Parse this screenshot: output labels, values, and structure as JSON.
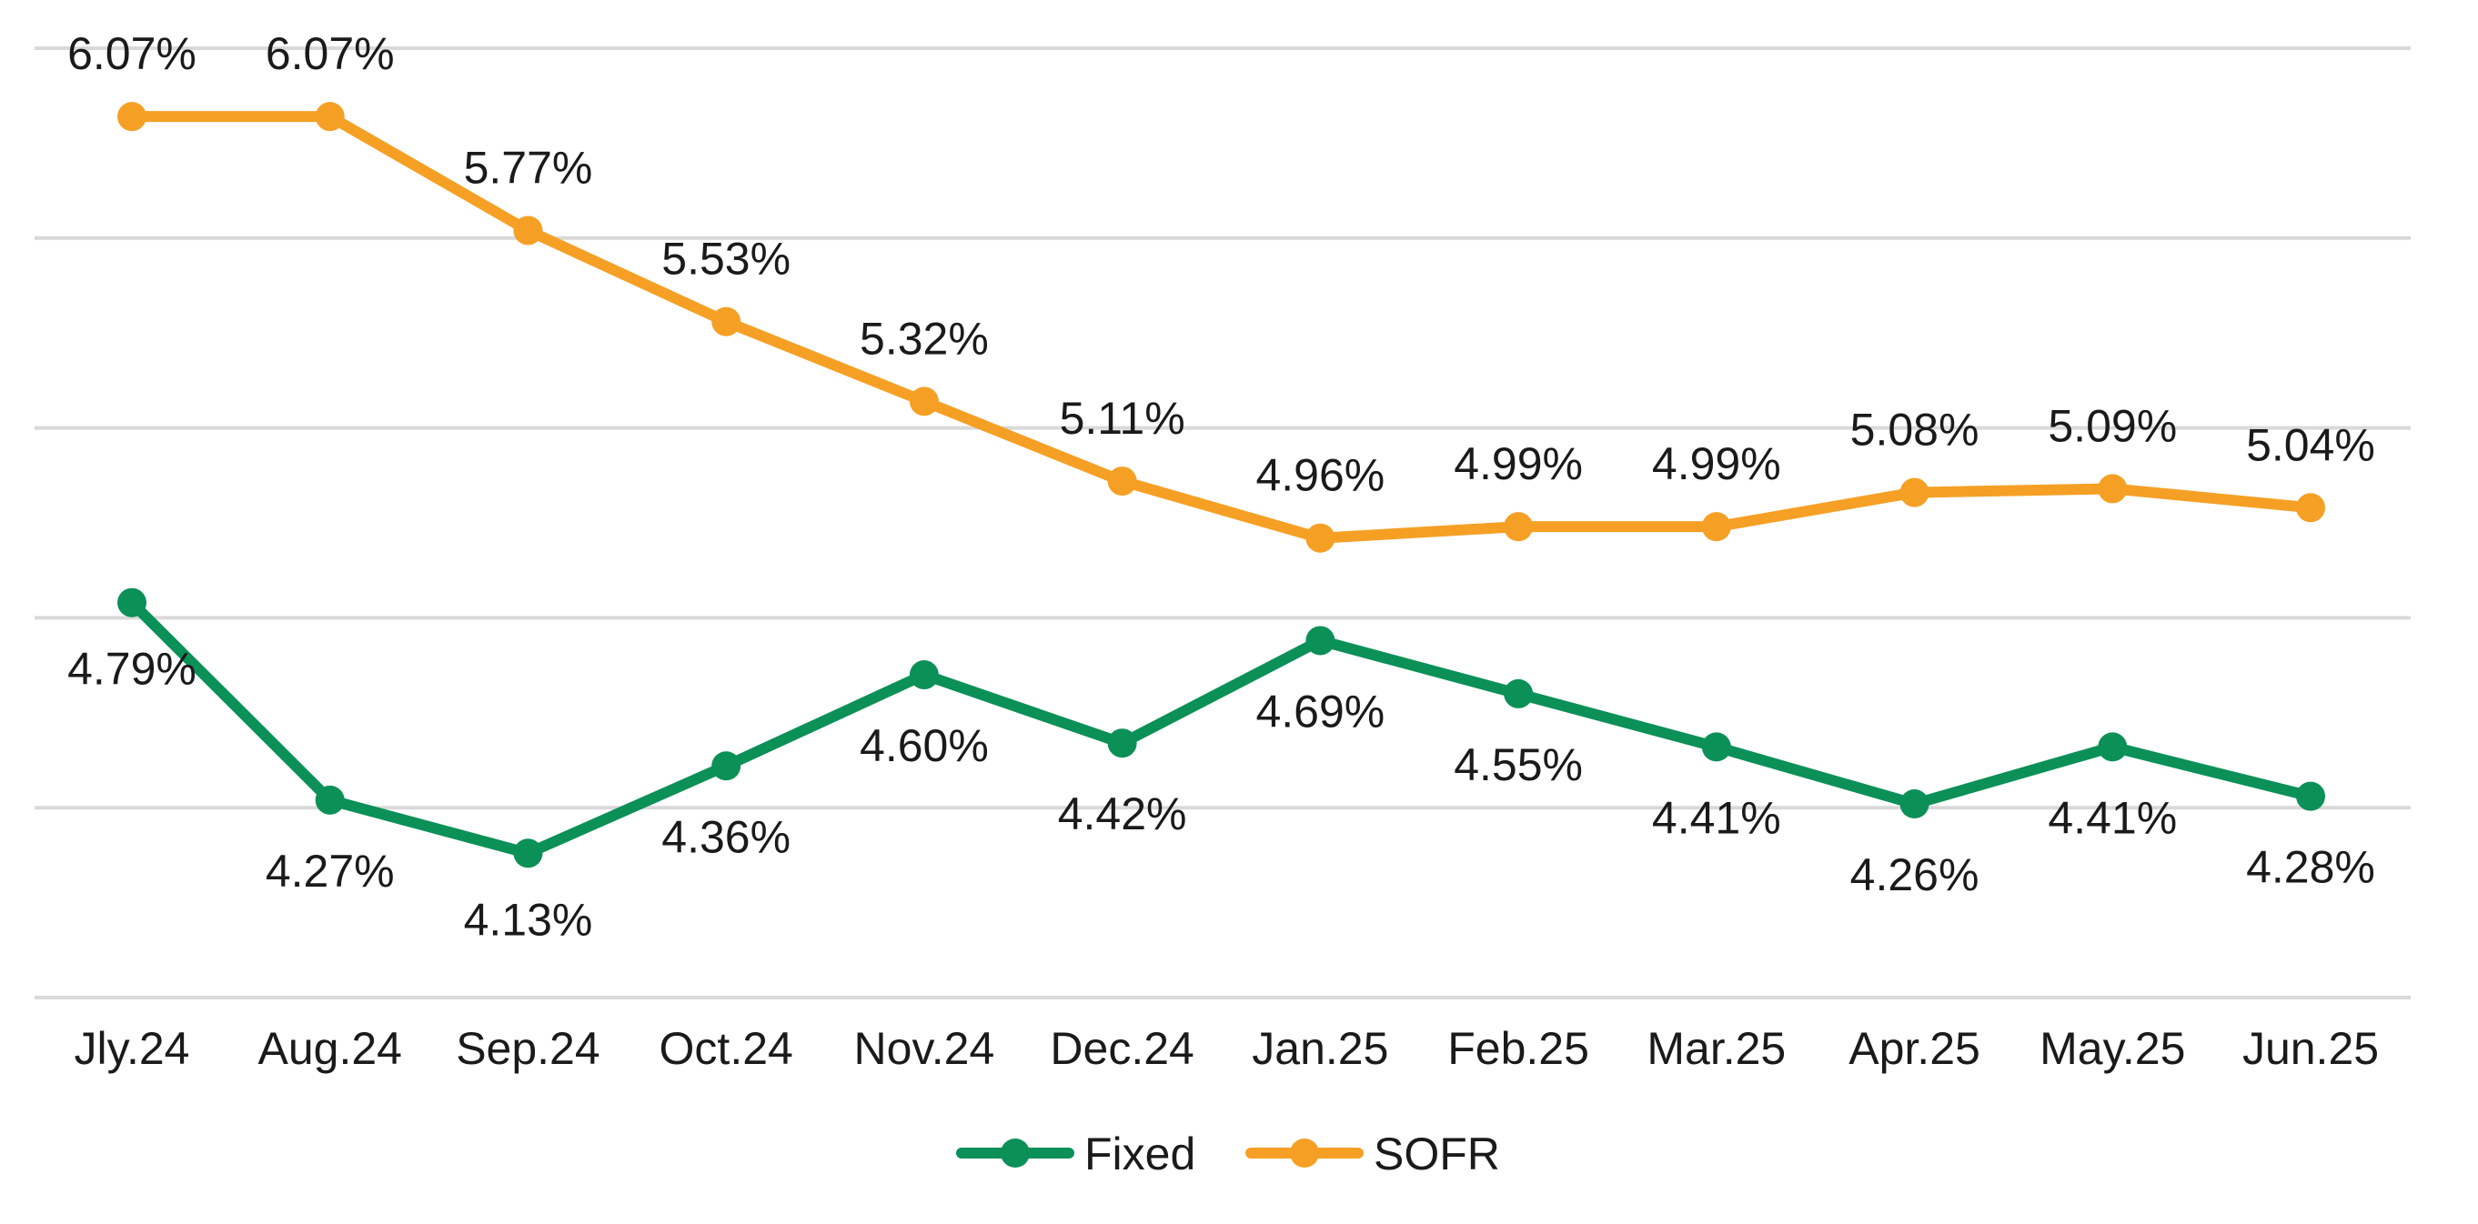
{
  "chart_data": {
    "type": "line",
    "title": "",
    "xlabel": "",
    "ylabel": "",
    "categories": [
      "Jly.24",
      "Aug.24",
      "Sep.24",
      "Oct.24",
      "Nov.24",
      "Dec.24",
      "Jan.25",
      "Feb.25",
      "Mar.25",
      "Apr.25",
      "May.25",
      "Jun.25"
    ],
    "ylim": [
      3.75,
      6.25
    ],
    "ygrid_step": 0.5,
    "grid": true,
    "yaxis_labels_shown": false,
    "legend": "bottom-center",
    "series": [
      {
        "name": "Fixed",
        "color": "#0b9058",
        "values": [
          4.79,
          4.27,
          4.13,
          4.36,
          4.6,
          4.42,
          4.69,
          4.55,
          4.41,
          4.26,
          4.41,
          4.28
        ],
        "labels": [
          "4.79%",
          "4.27%",
          "4.13%",
          "4.36%",
          "4.60%",
          "4.42%",
          "4.69%",
          "4.55%",
          "4.41%",
          "4.26%",
          "4.41%",
          "4.28%"
        ]
      },
      {
        "name": "SOFR",
        "color": "#f5a025",
        "values": [
          6.07,
          6.07,
          5.77,
          5.53,
          5.32,
          5.11,
          4.96,
          4.99,
          4.99,
          5.08,
          5.09,
          5.04
        ],
        "labels": [
          "6.07%",
          "6.07%",
          "5.77%",
          "5.53%",
          "5.32%",
          "5.11%",
          "4.96%",
          "4.99%",
          "4.99%",
          "5.08%",
          "5.09%",
          "5.04%"
        ]
      }
    ]
  }
}
